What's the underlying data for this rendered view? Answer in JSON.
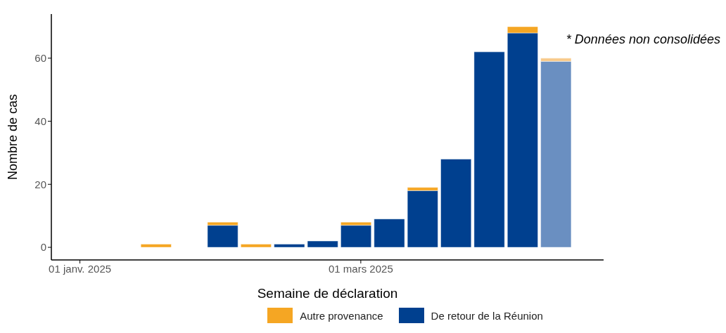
{
  "chart_data": {
    "type": "bar",
    "stacked": true,
    "xlabel": "Semaine de déclaration",
    "ylabel": "Nombre de cas",
    "x": [
      "2025-01-17",
      "2025-01-31",
      "2025-02-07",
      "2025-02-14",
      "2025-02-21",
      "2025-02-28",
      "2025-03-07",
      "2025-03-14",
      "2025-03-21",
      "2025-03-28",
      "2025-04-04",
      "2025-04-11"
    ],
    "series": [
      {
        "name": "De retour de la Réunion",
        "color": "#00408f",
        "colors": [
          "#00408f",
          "#00408f",
          "#00408f",
          "#00408f",
          "#00408f",
          "#00408f",
          "#00408f",
          "#00408f",
          "#00408f",
          "#00408f",
          "#00408f",
          "#6a8fc1"
        ],
        "values": [
          null,
          7,
          null,
          1,
          2,
          7,
          9,
          18,
          28,
          62,
          68,
          59
        ]
      },
      {
        "name": "Autre provenance",
        "color": "#f5a623",
        "colors": [
          "#f5a623",
          "#f5a623",
          "#f5a623",
          "#f5a623",
          "#f5a623",
          "#f5a623",
          "#f5a623",
          "#f5a623",
          "#f5a623",
          "#f5a623",
          "#f5a623",
          "#f8c98a"
        ],
        "values": [
          1,
          1,
          1,
          null,
          null,
          1,
          null,
          1,
          null,
          null,
          2,
          1
        ]
      }
    ],
    "xlim": [
      "2024-12-26",
      "2025-04-21"
    ],
    "xticks": [
      {
        "value": "2025-01-01",
        "label": "01 janv. 2025"
      },
      {
        "value": "2025-03-01",
        "label": "01 mars 2025"
      }
    ],
    "ylim": [
      -4,
      74
    ],
    "yticks": [
      0,
      20,
      40,
      60
    ],
    "legend": "bottom",
    "annotations": [
      "* Données non consolidées"
    ]
  }
}
